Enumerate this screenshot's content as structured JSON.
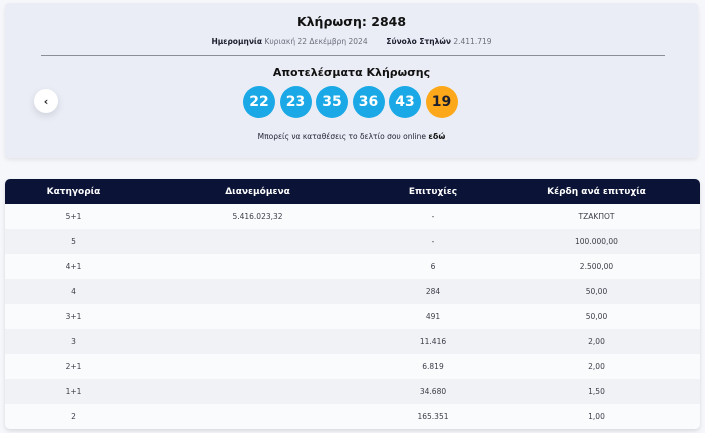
{
  "draw": {
    "title": "Κλήρωση: 2848",
    "date_label": "Ημερομηνία",
    "date_value": "Κυριακή 22 Δεκέμβρη 2024",
    "columns_label": "Σύνολο Στηλών",
    "columns_value": "2.411.719",
    "results_title": "Αποτελέσματα Κλήρωσης",
    "numbers": [
      "22",
      "23",
      "35",
      "36",
      "43"
    ],
    "bonus_number": "19",
    "prev_button_icon": "chevron-left-icon",
    "deposit_text": "Μπορείς να καταθέσεις το δελτίο σου online",
    "deposit_link": "εδώ"
  },
  "colors": {
    "ball_main": "#1aa9e6",
    "ball_bonus": "#fca81a",
    "table_header": "#0b1437",
    "card_bg": "#eaedf6"
  },
  "table": {
    "headers": [
      "Κατηγορία",
      "Διανεμόμενα",
      "Επιτυχίες",
      "Κέρδη ανά επιτυχία"
    ],
    "rows": [
      {
        "category": "5+1",
        "distributed": "5.416.023,32",
        "winners": "-",
        "prize": "ΤΖΑΚΠΟΤ"
      },
      {
        "category": "5",
        "distributed": "",
        "winners": "-",
        "prize": "100.000,00"
      },
      {
        "category": "4+1",
        "distributed": "",
        "winners": "6",
        "prize": "2.500,00"
      },
      {
        "category": "4",
        "distributed": "",
        "winners": "284",
        "prize": "50,00"
      },
      {
        "category": "3+1",
        "distributed": "",
        "winners": "491",
        "prize": "50,00"
      },
      {
        "category": "3",
        "distributed": "",
        "winners": "11.416",
        "prize": "2,00"
      },
      {
        "category": "2+1",
        "distributed": "",
        "winners": "6.819",
        "prize": "2,00"
      },
      {
        "category": "1+1",
        "distributed": "",
        "winners": "34.680",
        "prize": "1,50"
      },
      {
        "category": "2",
        "distributed": "",
        "winners": "165.351",
        "prize": "1,00"
      }
    ]
  }
}
